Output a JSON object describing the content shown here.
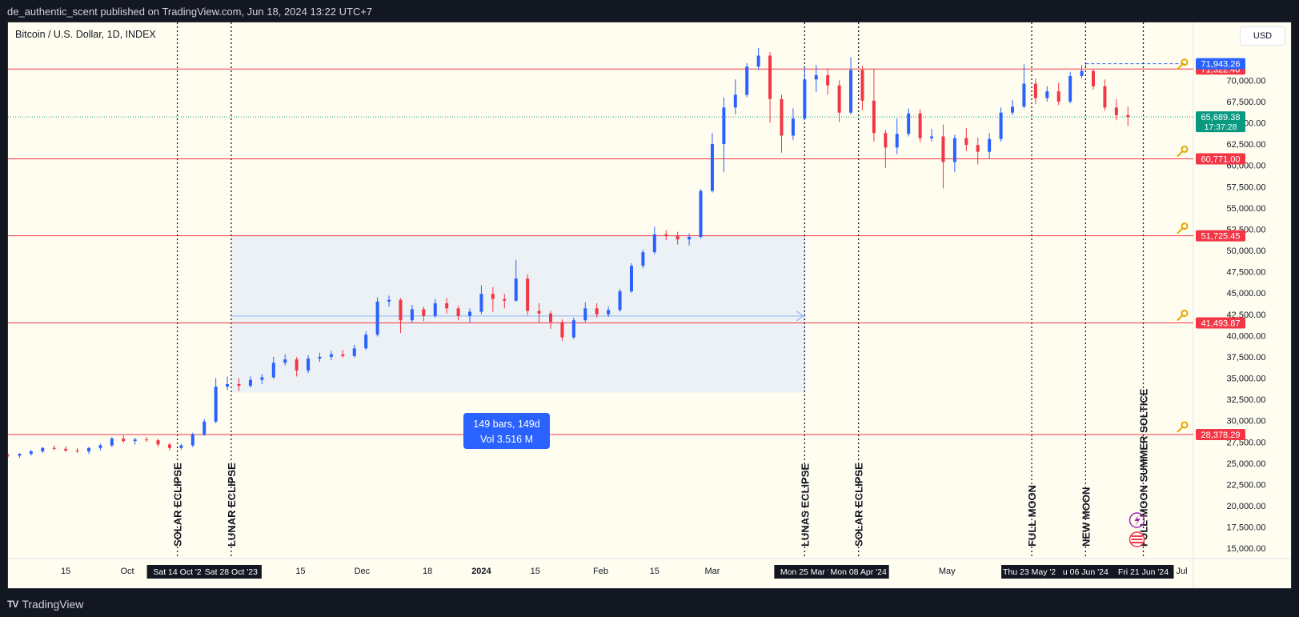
{
  "header": {
    "publisher_text": "de_authentic_scent published on TradingView.com, Jun 18, 2024 13:22 UTC+7"
  },
  "symbol": {
    "title": "Bitcoin / U.S. Dollar, 1D, INDEX"
  },
  "currency_button": "USD",
  "footer": {
    "brand": "TradingView",
    "logo_mark": "TV"
  },
  "colors": {
    "background": "#fffdf0",
    "up_candle": "#2962ff",
    "down_candle": "#f23645",
    "level_line": "#f23645",
    "current_price": "#089981",
    "selection_fill": "#e8eef5",
    "event_line": "#131722"
  },
  "chart_data": {
    "type": "candlestick",
    "title": "Bitcoin / U.S. Dollar, 1D, INDEX",
    "x_range": [
      "2023-08-31",
      "2024-07-04"
    ],
    "ylim": [
      13800,
      76800
    ],
    "y_ticks": [
      15000,
      17500,
      20000,
      22500,
      25000,
      27500,
      30000,
      32500,
      35000,
      37500,
      40000,
      42500,
      45000,
      47500,
      50000,
      52500,
      55000,
      57500,
      60000,
      62500,
      65000,
      67500,
      70000
    ],
    "y_tick_labels": [
      "15,000.00",
      "17,500.00",
      "20,000.00",
      "22,500.00",
      "25,000.00",
      "27,500.00",
      "30,000.00",
      "32,500.00",
      "35,000.00",
      "37,500.00",
      "40,000.00",
      "42,500.00",
      "45,000.00",
      "47,500.00",
      "50,000.00",
      "52,500.00",
      "55,000.00",
      "57,500.00",
      "60,000.00",
      "62,500.00",
      "65,000.00",
      "67,500.00",
      "70,000.00"
    ],
    "x_ticks": [
      {
        "date": "2023-09-15",
        "label": "15"
      },
      {
        "date": "2023-10-01",
        "label": "Oct"
      },
      {
        "date": "2023-11-15",
        "label": "15"
      },
      {
        "date": "2023-12-01",
        "label": "Dec"
      },
      {
        "date": "2023-12-18",
        "label": "18"
      },
      {
        "date": "2024-01-01",
        "label": "2024",
        "bold": true
      },
      {
        "date": "2024-01-15",
        "label": "15"
      },
      {
        "date": "2024-02-01",
        "label": "Feb"
      },
      {
        "date": "2024-02-15",
        "label": "15"
      },
      {
        "date": "2024-03-01",
        "label": "Mar"
      },
      {
        "date": "2024-05-01",
        "label": "May"
      },
      {
        "date": "2024-07-01",
        "label": "Jul"
      }
    ],
    "horizontal_levels": [
      {
        "price": 71322.4,
        "label": "71,322.40",
        "key_icon": false
      },
      {
        "price": 60771.0,
        "label": "60,771.00",
        "key_icon": true
      },
      {
        "price": 51725.45,
        "label": "51,725.45",
        "key_icon": true
      },
      {
        "price": 41493.87,
        "label": "41,493.87",
        "key_icon": true
      },
      {
        "price": 28378.29,
        "label": "28,378.29",
        "key_icon": true
      }
    ],
    "high_marker": {
      "price": 71943.26,
      "label": "71,943.26",
      "from_date": "2024-06-06",
      "key_icon": true
    },
    "current_price": {
      "price": 65689.38,
      "label": "65,689.38",
      "countdown": "17:37:28"
    },
    "date_range_selection": {
      "from": "2023-10-28",
      "to": "2024-03-25",
      "price_low": 33300,
      "price_high": 51725.45,
      "text_line1": "149 bars, 149d",
      "text_line2": "Vol 3.516 M"
    },
    "events": [
      {
        "date": "2023-10-14",
        "label": "SOLAR ECLIPSE",
        "axis_label": "Sat 14 Oct '2"
      },
      {
        "date": "2023-10-28",
        "label": "LUNAR ECLIPSE",
        "axis_label": "Sat 28 Oct '23"
      },
      {
        "date": "2024-03-25",
        "label": "LUNAS ECLIPSE",
        "axis_label": "Mon 25 Mar '"
      },
      {
        "date": "2024-04-08",
        "label": "SOLAR ECLIPSE",
        "axis_label": "Mon 08 Apr '24"
      },
      {
        "date": "2024-05-23",
        "label": "FULL MOON",
        "axis_label": "Thu 23 May '24"
      },
      {
        "date": "2024-06-06",
        "label": "NEW MOON",
        "axis_label": "u 06 Jun '24"
      },
      {
        "date": "2024-06-21",
        "label": "FULL MOON SUMMER SOLTICE",
        "axis_label": "Fri 21 Jun '24"
      }
    ],
    "candles": [
      [
        "2023-08-31",
        25950,
        26150,
        25700,
        25900
      ],
      [
        "2023-09-03",
        25900,
        26200,
        25650,
        26100
      ],
      [
        "2023-09-06",
        26100,
        26600,
        25900,
        26400
      ],
      [
        "2023-09-09",
        26400,
        26900,
        26200,
        26800
      ],
      [
        "2023-09-12",
        26800,
        27100,
        26500,
        26700
      ],
      [
        "2023-09-15",
        26700,
        27000,
        26300,
        26500
      ],
      [
        "2023-09-18",
        26500,
        26800,
        26200,
        26400
      ],
      [
        "2023-09-21",
        26400,
        26900,
        26100,
        26800
      ],
      [
        "2023-09-24",
        26800,
        27300,
        26500,
        27100
      ],
      [
        "2023-09-27",
        27100,
        28100,
        26900,
        27900
      ],
      [
        "2023-09-30",
        27900,
        28300,
        27400,
        27600
      ],
      [
        "2023-10-03",
        27600,
        28000,
        27200,
        27800
      ],
      [
        "2023-10-06",
        27800,
        28100,
        27500,
        27700
      ],
      [
        "2023-10-09",
        27700,
        27900,
        26900,
        27200
      ],
      [
        "2023-10-12",
        27200,
        27400,
        26500,
        26800
      ],
      [
        "2023-10-15",
        26800,
        27300,
        26600,
        27100
      ],
      [
        "2023-10-18",
        27100,
        28600,
        26900,
        28400
      ],
      [
        "2023-10-21",
        28400,
        30200,
        28200,
        29900
      ],
      [
        "2023-10-24",
        29900,
        35000,
        29700,
        34000
      ],
      [
        "2023-10-27",
        34000,
        35200,
        33600,
        34300
      ],
      [
        "2023-10-30",
        34300,
        35000,
        33500,
        34100
      ],
      [
        "2023-11-02",
        34100,
        35200,
        33900,
        34800
      ],
      [
        "2023-11-05",
        34800,
        35500,
        34300,
        35100
      ],
      [
        "2023-11-08",
        35100,
        37500,
        34900,
        36800
      ],
      [
        "2023-11-11",
        36800,
        37800,
        36500,
        37200
      ],
      [
        "2023-11-14",
        37200,
        37500,
        35200,
        35900
      ],
      [
        "2023-11-17",
        35900,
        37700,
        35600,
        37300
      ],
      [
        "2023-11-20",
        37300,
        38000,
        36900,
        37500
      ],
      [
        "2023-11-23",
        37500,
        38200,
        37100,
        37800
      ],
      [
        "2023-11-26",
        37800,
        38300,
        37400,
        37600
      ],
      [
        "2023-11-29",
        37600,
        38900,
        37400,
        38500
      ],
      [
        "2023-12-02",
        38500,
        40500,
        38300,
        40100
      ],
      [
        "2023-12-05",
        40100,
        44500,
        39900,
        44000
      ],
      [
        "2023-12-08",
        44000,
        44700,
        43400,
        44200
      ],
      [
        "2023-12-11",
        44200,
        44400,
        40300,
        41800
      ],
      [
        "2023-12-14",
        41800,
        43600,
        41500,
        43100
      ],
      [
        "2023-12-17",
        43100,
        43400,
        41700,
        42300
      ],
      [
        "2023-12-20",
        42300,
        44300,
        42100,
        43800
      ],
      [
        "2023-12-23",
        43800,
        44400,
        42600,
        43200
      ],
      [
        "2023-12-26",
        43200,
        43500,
        41800,
        42300
      ],
      [
        "2023-12-29",
        42300,
        43200,
        41500,
        42800
      ],
      [
        "2024-01-01",
        42800,
        45900,
        42500,
        44900
      ],
      [
        "2024-01-04",
        44900,
        45700,
        42800,
        44300
      ],
      [
        "2024-01-07",
        44300,
        44900,
        43200,
        44100
      ],
      [
        "2024-01-10",
        44100,
        48900,
        44000,
        46700
      ],
      [
        "2024-01-13",
        46700,
        47200,
        42400,
        42900
      ],
      [
        "2024-01-16",
        42900,
        43800,
        41500,
        42600
      ],
      [
        "2024-01-19",
        42600,
        42900,
        40800,
        41600
      ],
      [
        "2024-01-22",
        41600,
        41900,
        39400,
        39800
      ],
      [
        "2024-01-25",
        39800,
        42100,
        39600,
        41800
      ],
      [
        "2024-01-28",
        41800,
        43900,
        41600,
        43200
      ],
      [
        "2024-01-31",
        43200,
        43800,
        42100,
        42500
      ],
      [
        "2024-02-03",
        42500,
        43400,
        42200,
        43000
      ],
      [
        "2024-02-06",
        43000,
        45500,
        42800,
        45200
      ],
      [
        "2024-02-09",
        45200,
        48500,
        45000,
        48200
      ],
      [
        "2024-02-12",
        48200,
        50100,
        47900,
        49800
      ],
      [
        "2024-02-15",
        49800,
        52800,
        49600,
        51900
      ],
      [
        "2024-02-18",
        51900,
        52400,
        51200,
        51700
      ],
      [
        "2024-02-21",
        51700,
        52200,
        50700,
        51300
      ],
      [
        "2024-02-24",
        51300,
        52000,
        50600,
        51600
      ],
      [
        "2024-02-27",
        51600,
        57200,
        51400,
        57000
      ],
      [
        "2024-03-01",
        57000,
        63800,
        56800,
        62500
      ],
      [
        "2024-03-04",
        62500,
        68000,
        59200,
        66800
      ],
      [
        "2024-03-07",
        66800,
        70100,
        66000,
        68300
      ],
      [
        "2024-03-10",
        68300,
        72000,
        68000,
        71600
      ],
      [
        "2024-03-13",
        71600,
        73800,
        71200,
        72900
      ],
      [
        "2024-03-16",
        72900,
        73300,
        65000,
        67800
      ],
      [
        "2024-03-19",
        67800,
        68300,
        61500,
        63500
      ],
      [
        "2024-03-22",
        63500,
        66700,
        63000,
        65500
      ],
      [
        "2024-03-25",
        65500,
        71500,
        65300,
        70100
      ],
      [
        "2024-03-28",
        70100,
        71800,
        68600,
        70600
      ],
      [
        "2024-03-31",
        70600,
        71400,
        68300,
        69400
      ],
      [
        "2024-04-03",
        69400,
        70000,
        65100,
        66200
      ],
      [
        "2024-04-06",
        66200,
        72700,
        66000,
        71200
      ],
      [
        "2024-04-09",
        71200,
        71700,
        66500,
        67600
      ],
      [
        "2024-04-12",
        67600,
        71300,
        62800,
        63800
      ],
      [
        "2024-04-15",
        63800,
        64200,
        59700,
        62100
      ],
      [
        "2024-04-18",
        62100,
        65500,
        61300,
        63700
      ],
      [
        "2024-04-21",
        63700,
        66700,
        63400,
        66100
      ],
      [
        "2024-04-24",
        66100,
        66600,
        62700,
        63200
      ],
      [
        "2024-04-27",
        63200,
        64300,
        62800,
        63400
      ],
      [
        "2024-04-30",
        63400,
        64800,
        57300,
        60400
      ],
      [
        "2024-05-03",
        60400,
        63600,
        59200,
        63200
      ],
      [
        "2024-05-06",
        63200,
        64400,
        61700,
        62400
      ],
      [
        "2024-05-09",
        62400,
        63300,
        60100,
        61600
      ],
      [
        "2024-05-12",
        61600,
        63800,
        60800,
        63100
      ],
      [
        "2024-05-15",
        63100,
        66800,
        62800,
        66200
      ],
      [
        "2024-05-18",
        66200,
        67700,
        65900,
        66900
      ],
      [
        "2024-05-21",
        66900,
        71900,
        66700,
        69600
      ],
      [
        "2024-05-24",
        69600,
        70200,
        67200,
        67900
      ],
      [
        "2024-05-27",
        67900,
        69300,
        67500,
        68700
      ],
      [
        "2024-05-30",
        68700,
        69700,
        67100,
        67500
      ],
      [
        "2024-06-02",
        67500,
        71000,
        67300,
        70500
      ],
      [
        "2024-06-05",
        70500,
        71800,
        70200,
        71100
      ],
      [
        "2024-06-08",
        71100,
        71300,
        68900,
        69300
      ],
      [
        "2024-06-11",
        69300,
        70100,
        66400,
        66800
      ],
      [
        "2024-06-14",
        66800,
        67800,
        65300,
        65900
      ],
      [
        "2024-06-17",
        65900,
        66900,
        64600,
        65700
      ]
    ]
  }
}
